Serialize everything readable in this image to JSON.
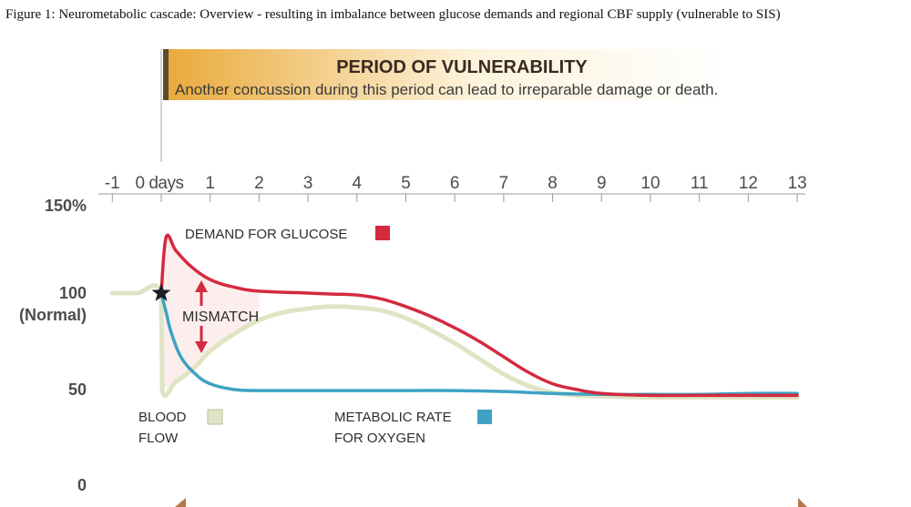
{
  "caption": "Figure 1: Neurometabolic cascade: Overview - resulting in imbalance between glucose demands and regional CBF supply (vulnerable to SIS)",
  "banner": {
    "title": "PERIOD OF VULNERABILITY",
    "subtitle": "Another concussion during this period can lead to irreparable damage or death."
  },
  "colors": {
    "demand": "#d42a3f",
    "blood_flow": "#dfe4c4",
    "oxygen": "#3ea2c4",
    "banner_start": "#e9a93a",
    "banner_end": "#fdf3dc",
    "banner_bar": "#5f4a2e",
    "axis_text": "#4d4d4d",
    "arrow": "#b5774a"
  },
  "chart_data": {
    "type": "line",
    "title": "",
    "xlabel": "days",
    "ylabel": "",
    "xlim": [
      -1,
      13
    ],
    "ylim": [
      0,
      150
    ],
    "x_ticks": [
      {
        "value": -1,
        "label": "-1"
      },
      {
        "value": 0,
        "label": "0 days"
      },
      {
        "value": 1,
        "label": "1"
      },
      {
        "value": 2,
        "label": "2"
      },
      {
        "value": 3,
        "label": "3"
      },
      {
        "value": 4,
        "label": "4"
      },
      {
        "value": 5,
        "label": "5"
      },
      {
        "value": 6,
        "label": "6"
      },
      {
        "value": 7,
        "label": "7"
      },
      {
        "value": 8,
        "label": "8"
      },
      {
        "value": 9,
        "label": "9"
      },
      {
        "value": 10,
        "label": "10"
      },
      {
        "value": 11,
        "label": "11"
      },
      {
        "value": 12,
        "label": "12"
      },
      {
        "value": 13,
        "label": "13"
      }
    ],
    "y_ticks": [
      {
        "value": 150,
        "label": "150%"
      },
      {
        "value": 100,
        "label": "100",
        "sublabel": "(Normal)"
      },
      {
        "value": 50,
        "label": "50"
      },
      {
        "value": 0,
        "label": "0"
      }
    ],
    "series": [
      {
        "name": "DEMAND FOR GLUCOSE",
        "key": "demand",
        "x": [
          0,
          0.1,
          0.3,
          0.6,
          1.0,
          1.5,
          2.0,
          3.0,
          3.5,
          4.0,
          4.5,
          5.0,
          5.5,
          6.0,
          6.5,
          7.0,
          7.5,
          8.0,
          8.5,
          9.0,
          10.0,
          11.0,
          12.0,
          13.0
        ],
        "values": [
          100,
          129,
          122,
          114,
          107,
          103,
          101,
          100,
          99.5,
          99,
          97,
          93,
          88,
          82,
          75,
          67,
          59,
          53,
          50,
          48,
          47,
          47,
          47,
          47
        ]
      },
      {
        "name": "BLOOD FLOW",
        "key": "blood_flow",
        "x": [
          -1,
          -0.5,
          0,
          0.02,
          0.3,
          0.7,
          1.0,
          1.5,
          2.0,
          2.5,
          3.0,
          3.5,
          4.0,
          4.5,
          5.0,
          5.5,
          6.0,
          6.5,
          7.0,
          7.5,
          8.0,
          8.5,
          9.0,
          10.0,
          11.0,
          12.0,
          13.0
        ],
        "values": [
          100,
          100,
          100,
          50,
          54,
          62,
          70,
          79,
          86,
          90,
          92,
          93,
          92.5,
          91,
          87,
          81,
          74,
          66,
          58,
          52,
          48.5,
          47,
          46.5,
          46,
          46,
          46,
          46
        ]
      },
      {
        "name": "METABOLIC RATE FOR OXYGEN",
        "key": "oxygen",
        "x": [
          0,
          0.1,
          0.2,
          0.4,
          0.7,
          1.0,
          1.5,
          2.0,
          3.0,
          4.0,
          5.0,
          6.0,
          7.0,
          8.0,
          9.0,
          10.0,
          11.0,
          12.0,
          13.0
        ],
        "values": [
          100,
          90,
          80,
          67,
          58,
          53,
          50,
          49.5,
          49.5,
          49.5,
          49.5,
          49.5,
          49,
          48,
          47.5,
          47.5,
          47.5,
          48,
          48
        ]
      }
    ],
    "annotations": [
      {
        "text": "MISMATCH",
        "x": 0.5
      },
      {
        "text": "DEMAND FOR GLUCOSE",
        "series": "demand"
      },
      {
        "text": "BLOOD",
        "text2": "FLOW",
        "series": "blood_flow"
      },
      {
        "text": "METABOLIC RATE",
        "text2": "FOR OXYGEN",
        "series": "oxygen"
      }
    ],
    "marker": {
      "shape": "star",
      "x": 0,
      "y": 100
    }
  }
}
